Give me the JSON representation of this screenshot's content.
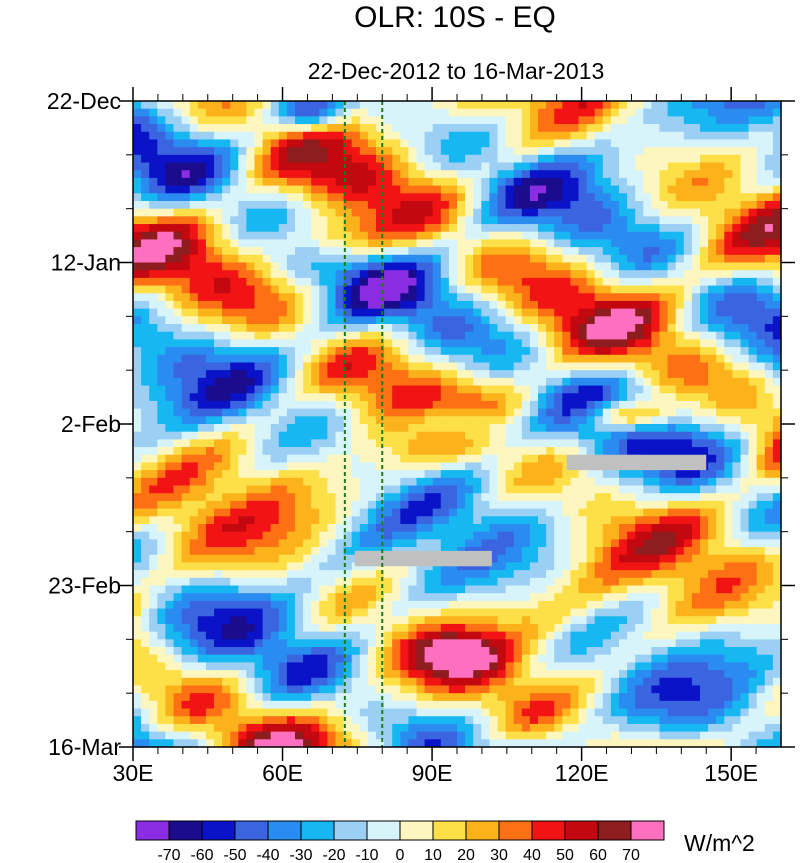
{
  "chart_data": {
    "type": "heatmap",
    "title": "OLR: 10S - EQ",
    "subtitle": "22-Dec-2012 to 16-Mar-2013",
    "x_axis": {
      "range": [
        30,
        160
      ],
      "ticks": [
        30,
        60,
        90,
        120,
        150
      ],
      "tick_labels": [
        "30E",
        "60E",
        "90E",
        "120E",
        "150E"
      ]
    },
    "y_axis": {
      "range_days": [
        0,
        84
      ],
      "ticks_days": [
        0,
        21,
        42,
        63,
        84
      ],
      "tick_labels": [
        "22-Dec",
        "12-Jan",
        "2-Feb",
        "23-Feb",
        "16-Mar"
      ]
    },
    "reference_lines_lon": [
      72.5,
      80
    ],
    "missing_data_blocks": [
      {
        "lon": [
          74.5,
          102
        ],
        "day": [
          58.5,
          60.5
        ]
      },
      {
        "lon": [
          117,
          145
        ],
        "day": [
          46,
          48
        ]
      }
    ],
    "colorbar": {
      "unit": "W/m^2",
      "levels": [
        -70,
        -60,
        -50,
        -40,
        -30,
        -20,
        -10,
        0,
        10,
        20,
        30,
        40,
        50,
        60,
        70
      ],
      "level_labels": [
        "-70",
        "-60",
        "-50",
        "-40",
        "-30",
        "-20",
        "-10",
        "0",
        "10",
        "20",
        "30",
        "40",
        "50",
        "60",
        "70"
      ],
      "colors": [
        "#8b2de2",
        "#1a0c8c",
        "#0a13c8",
        "#3a64e0",
        "#2a8cf0",
        "#17b8f2",
        "#9ccff4",
        "#d8f4fb",
        "#fdf7bf",
        "#fde048",
        "#fcb21a",
        "#fd7014",
        "#f21414",
        "#c4080f",
        "#8e1d20",
        "#fd70c0"
      ]
    }
  }
}
